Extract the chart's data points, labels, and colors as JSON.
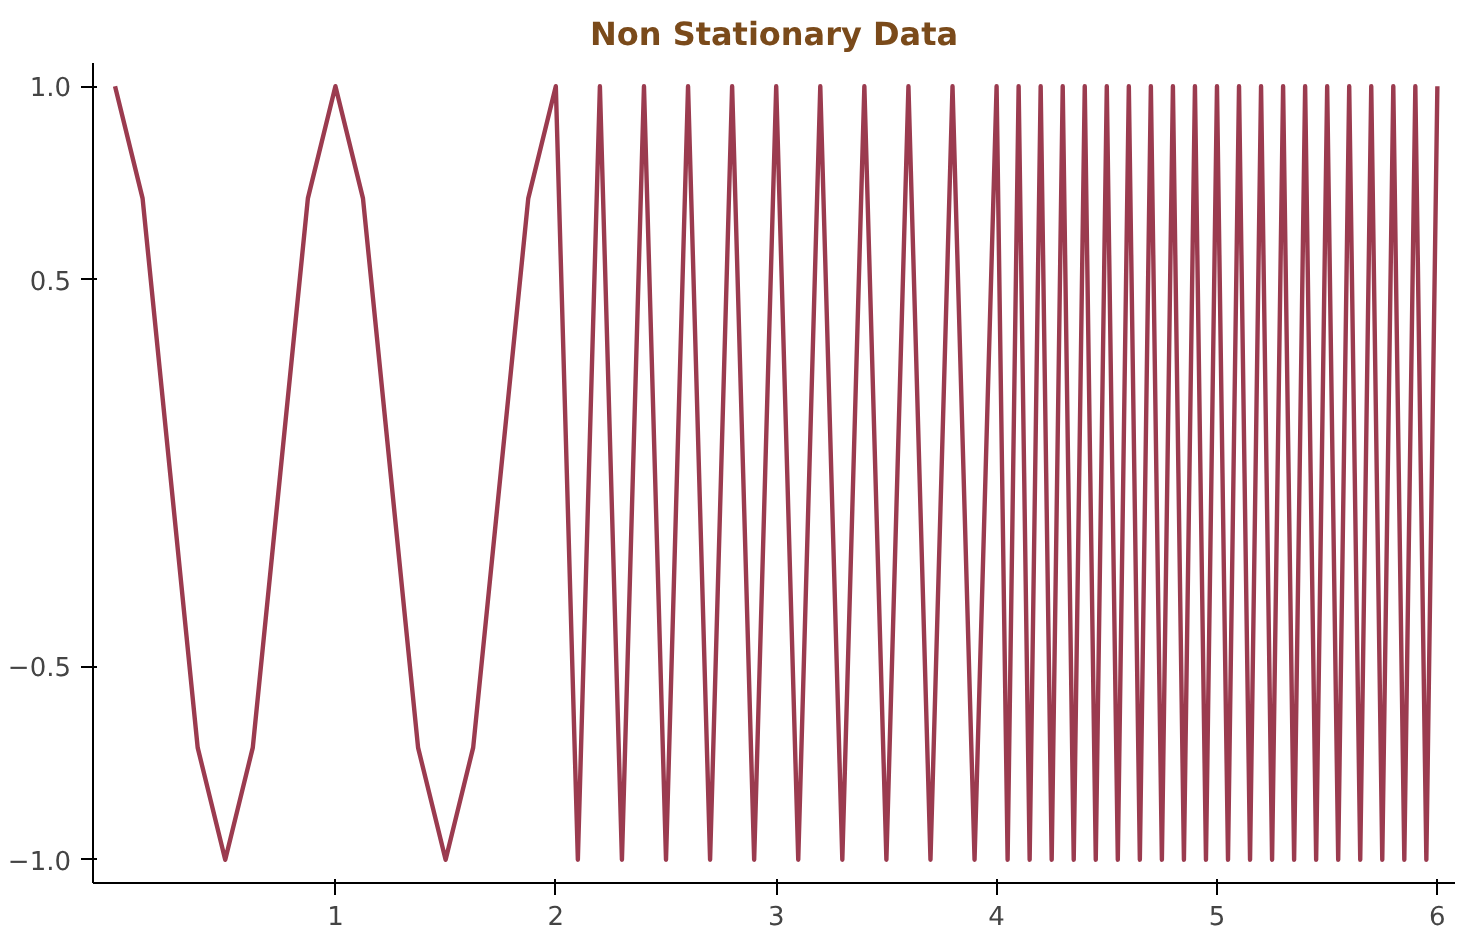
{
  "chart_data": {
    "type": "line",
    "title": "Non Stationary Data",
    "color": "#9b3b4f",
    "xlim": [
      -0.1,
      6.08
    ],
    "ylim": [
      -1.06,
      1.06
    ],
    "xticks": [
      1,
      2,
      3,
      4,
      5,
      6
    ],
    "yticks": [
      {
        "value": -1,
        "label": "−1.0"
      },
      {
        "value": -0.5,
        "label": "−0.5"
      },
      {
        "value": 0.5,
        "label": "0.5"
      },
      {
        "value": 1,
        "label": "1.0"
      }
    ],
    "grid": false,
    "marker": "none",
    "line_style": "solid",
    "x": [
      0,
      0.125,
      0.25,
      0.375,
      0.5,
      0.625,
      0.75,
      0.875,
      1,
      1.125,
      1.25,
      1.375,
      1.5,
      1.625,
      1.75,
      1.875,
      2,
      2.05,
      2.1,
      2.15,
      2.2,
      2.25,
      2.3,
      2.35,
      2.4,
      2.45,
      2.5,
      2.55,
      2.6,
      2.65,
      2.7,
      2.75,
      2.8,
      2.85,
      2.9,
      2.95,
      3,
      3.05,
      3.1,
      3.15,
      3.2,
      3.25,
      3.3,
      3.35,
      3.4,
      3.45,
      3.5,
      3.55,
      3.6,
      3.65,
      3.7,
      3.75,
      3.8,
      3.85,
      3.9,
      3.95,
      4,
      4.025,
      4.05,
      4.075,
      4.1,
      4.125,
      4.15,
      4.175,
      4.2,
      4.225,
      4.25,
      4.275,
      4.3,
      4.325,
      4.35,
      4.375,
      4.4,
      4.425,
      4.45,
      4.475,
      4.5,
      4.525,
      4.55,
      4.575,
      4.6,
      4.625,
      4.65,
      4.675,
      4.7,
      4.725,
      4.75,
      4.775,
      4.8,
      4.825,
      4.85,
      4.875,
      4.9,
      4.925,
      4.95,
      4.975,
      5,
      5.025,
      5.05,
      5.075,
      5.1,
      5.125,
      5.15,
      5.175,
      5.2,
      5.225,
      5.25,
      5.275,
      5.3,
      5.325,
      5.35,
      5.375,
      5.4,
      5.425,
      5.45,
      5.475,
      5.5,
      5.525,
      5.55,
      5.575,
      5.6,
      5.625,
      5.65,
      5.675,
      5.7,
      5.725,
      5.75,
      5.775,
      5.8,
      5.825,
      5.85,
      5.875,
      5.9,
      5.925,
      5.95,
      5.975,
      6
    ],
    "values": [
      1,
      0.71,
      0,
      -0.71,
      -1,
      -0.71,
      0,
      0.71,
      1,
      0.71,
      0,
      -0.71,
      -1,
      -0.71,
      0,
      0.71,
      1,
      0,
      -1,
      0,
      1,
      0,
      -1,
      0,
      1,
      0,
      -1,
      0,
      1,
      0,
      -1,
      0,
      1,
      0,
      -1,
      0,
      1,
      0,
      -1,
      0,
      1,
      0,
      -1,
      0,
      1,
      0,
      -1,
      0,
      1,
      0,
      -1,
      0,
      1,
      0,
      -1,
      0,
      1,
      0,
      -1,
      0,
      1,
      0,
      -1,
      0,
      1,
      0,
      -1,
      0,
      1,
      0,
      -1,
      0,
      1,
      0,
      -1,
      0,
      1,
      0,
      -1,
      0,
      1,
      0,
      -1,
      0,
      1,
      0,
      -1,
      0,
      1,
      0,
      -1,
      0,
      1,
      0,
      -1,
      0,
      1,
      0,
      -1,
      0,
      1,
      0,
      -1,
      0,
      1,
      0,
      -1,
      0,
      1,
      0,
      -1,
      0,
      1,
      0,
      -1,
      0,
      1,
      0,
      -1,
      0,
      1,
      0,
      -1,
      0,
      1,
      0,
      -1,
      0,
      1,
      0,
      -1,
      0,
      1,
      0,
      -1,
      0,
      1
    ]
  }
}
